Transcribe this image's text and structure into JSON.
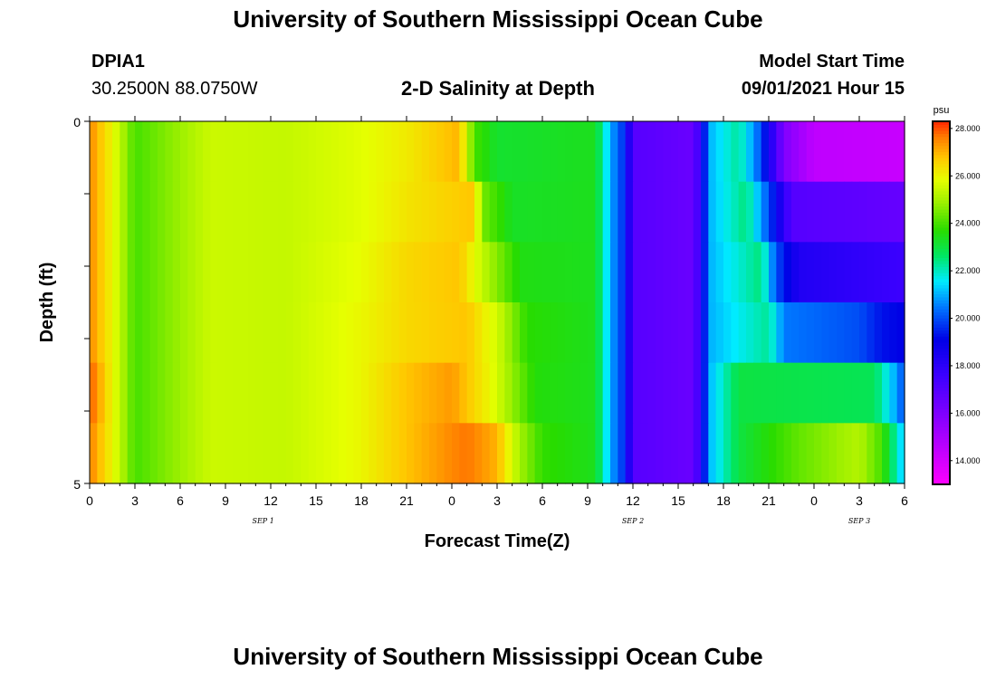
{
  "page": {
    "title_top": "University of Southern Mississippi Ocean Cube",
    "title_bottom": "University of Southern Mississippi Ocean Cube",
    "station": "DPIA1",
    "coords": "30.2500N  88.0750W",
    "subtitle": "2-D Salinity at Depth",
    "model_label": "Model Start Time",
    "model_time": "09/01/2021 Hour 15"
  },
  "chart_data": {
    "type": "heatmap",
    "title": "2-D Salinity at Depth",
    "xlabel": "Forecast Time(Z)",
    "ylabel": "Depth (ft)",
    "units": "psu",
    "x_ticks": [
      "0",
      "3",
      "6",
      "9",
      "12",
      "15",
      "18",
      "21",
      "0",
      "3",
      "6",
      "9",
      "12",
      "15",
      "18",
      "21",
      "0",
      "3",
      "6"
    ],
    "date_labels": [
      {
        "label": "SEP 1",
        "hour": 11
      },
      {
        "label": "SEP 2",
        "hour": 36
      },
      {
        "label": "SEP 3",
        "hour": 60
      }
    ],
    "y_ticks": [
      "0",
      "5"
    ],
    "ylim": [
      0,
      5
    ],
    "xlim": [
      0,
      54
    ],
    "colorbar": {
      "min": 13.0,
      "max": 28.3,
      "ticks": [
        "14.000",
        "16.000",
        "18.000",
        "20.000",
        "22.000",
        "24.000",
        "26.000",
        "28.000"
      ],
      "tick_values": [
        14,
        16,
        18,
        20,
        22,
        24,
        26,
        28
      ]
    },
    "depth_layers": 5,
    "keyframes": [
      [
        [
          0,
          27.5
        ],
        [
          1.5,
          26
        ],
        [
          3,
          24
        ],
        [
          8,
          25.5
        ],
        [
          13,
          25.4
        ],
        [
          18,
          25.8
        ],
        [
          21,
          26.2
        ],
        [
          24.5,
          27
        ],
        [
          25.5,
          24
        ],
        [
          27,
          23.2
        ],
        [
          33.5,
          23.4
        ],
        [
          34.5,
          21
        ],
        [
          35.5,
          19.5
        ],
        [
          36,
          17
        ],
        [
          40,
          16.5
        ],
        [
          40.5,
          18
        ],
        [
          41,
          21
        ],
        [
          43,
          22.3
        ],
        [
          44.5,
          20
        ],
        [
          46,
          16
        ],
        [
          48,
          14.5
        ],
        [
          54,
          14.3
        ]
      ],
      [
        [
          0,
          27.5
        ],
        [
          1.5,
          26
        ],
        [
          3,
          24
        ],
        [
          8,
          25.5
        ],
        [
          13,
          25.4
        ],
        [
          18,
          25.8
        ],
        [
          21,
          26.3
        ],
        [
          25.5,
          26.8
        ],
        [
          26,
          24.5
        ],
        [
          28,
          23.3
        ],
        [
          33.5,
          23.4
        ],
        [
          34.5,
          21
        ],
        [
          35.5,
          19.5
        ],
        [
          36,
          17
        ],
        [
          40,
          16.5
        ],
        [
          40.5,
          18
        ],
        [
          41,
          21
        ],
        [
          43.5,
          22.5
        ],
        [
          45,
          20
        ],
        [
          46.5,
          17
        ],
        [
          54,
          16.6
        ]
      ],
      [
        [
          0,
          27.5
        ],
        [
          1.5,
          26
        ],
        [
          3,
          24
        ],
        [
          8,
          25.5
        ],
        [
          13,
          25.4
        ],
        [
          18,
          25.9
        ],
        [
          21,
          26.5
        ],
        [
          24.5,
          26.8
        ],
        [
          26,
          25.4
        ],
        [
          28.5,
          23.5
        ],
        [
          33.5,
          23.4
        ],
        [
          34.5,
          21
        ],
        [
          35.5,
          19.5
        ],
        [
          36,
          17
        ],
        [
          40,
          16.5
        ],
        [
          40.5,
          18
        ],
        [
          41,
          21
        ],
        [
          44.5,
          22.5
        ],
        [
          45.5,
          20
        ],
        [
          47,
          18.3
        ],
        [
          54,
          17.6
        ]
      ],
      [
        [
          0,
          27.5
        ],
        [
          1.5,
          26
        ],
        [
          3,
          24
        ],
        [
          8,
          25.5
        ],
        [
          13,
          25.4
        ],
        [
          18,
          26
        ],
        [
          21,
          26.5
        ],
        [
          25,
          26.8
        ],
        [
          27,
          25.6
        ],
        [
          29,
          23.7
        ],
        [
          33.5,
          23.4
        ],
        [
          34.5,
          21
        ],
        [
          35.5,
          19.5
        ],
        [
          36,
          17
        ],
        [
          40,
          16.5
        ],
        [
          40.5,
          18
        ],
        [
          41,
          21
        ],
        [
          45,
          22.3
        ],
        [
          46,
          20.5
        ],
        [
          51,
          20
        ],
        [
          52.5,
          19.3
        ],
        [
          54,
          19.1
        ]
      ],
      [
        [
          0,
          28
        ],
        [
          1.5,
          26
        ],
        [
          3,
          24
        ],
        [
          8,
          25.5
        ],
        [
          13,
          25.4
        ],
        [
          18,
          26
        ],
        [
          21,
          26.8
        ],
        [
          24,
          27.3
        ],
        [
          26.5,
          26
        ],
        [
          28,
          24.8
        ],
        [
          29.5,
          23.6
        ],
        [
          33.5,
          23.4
        ],
        [
          34.5,
          21
        ],
        [
          35.5,
          19.5
        ],
        [
          36,
          17
        ],
        [
          40,
          16.5
        ],
        [
          40.5,
          18
        ],
        [
          41,
          21
        ],
        [
          43,
          23
        ],
        [
          52,
          22.8
        ],
        [
          53,
          21.5
        ],
        [
          54,
          20
        ]
      ],
      [
        [
          0,
          27.6
        ],
        [
          1.5,
          26
        ],
        [
          3,
          24
        ],
        [
          8,
          25.5
        ],
        [
          13,
          25.4
        ],
        [
          18,
          26
        ],
        [
          21,
          26.8
        ],
        [
          24,
          27.5
        ],
        [
          25,
          27.7
        ],
        [
          27,
          27
        ],
        [
          28.5,
          25
        ],
        [
          30,
          23.8
        ],
        [
          33.5,
          23.4
        ],
        [
          34.5,
          21
        ],
        [
          35.5,
          19.5
        ],
        [
          36,
          17
        ],
        [
          40,
          16.5
        ],
        [
          40.5,
          18
        ],
        [
          41,
          21
        ],
        [
          43,
          23
        ],
        [
          47,
          24.3
        ],
        [
          51,
          25.2
        ],
        [
          52.5,
          24
        ],
        [
          53.5,
          22
        ],
        [
          54,
          21
        ]
      ]
    ]
  }
}
